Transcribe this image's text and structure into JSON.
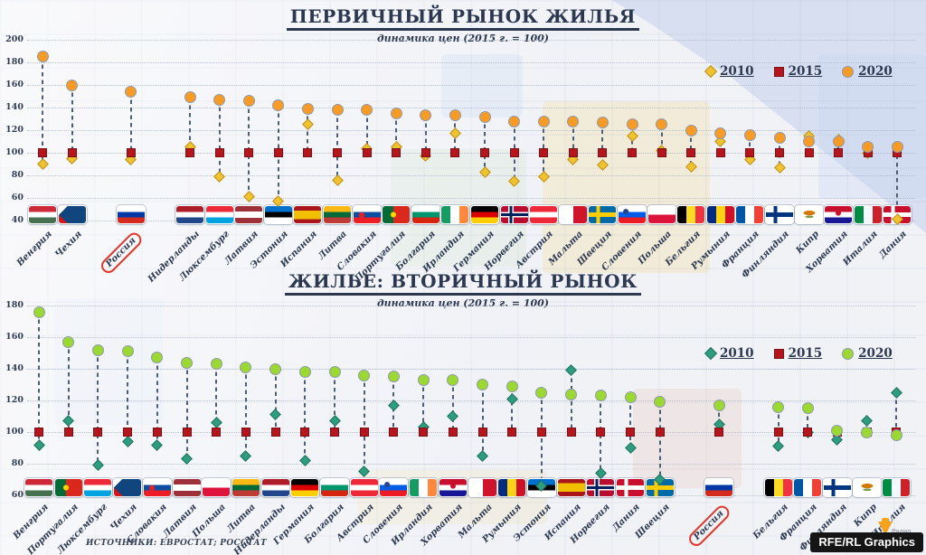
{
  "source_label": "ИСТОЧНИКИ: ЕВРОСТАТ; РОССТАТ",
  "branding": {
    "radio_label": "Радио",
    "credit": "RFE/RL Graphics"
  },
  "chart_data": [
    {
      "type": "scatter",
      "title": "ПЕРВИЧНЫЙ РЫНОК ЖИЛЬЯ",
      "subtitle": "динамика цен (2015 г. = 100)",
      "grid": true,
      "legend_position": "top-right",
      "ylim": [
        40,
        200
      ],
      "yticks": [
        200,
        180,
        160,
        140,
        120,
        100,
        80,
        60,
        40
      ],
      "highlight_country": "Россия",
      "categories": [
        "Венгрия",
        "Чехия",
        "Россия",
        "Нидерланды",
        "Люксембург",
        "Латвия",
        "Эстония",
        "Испания",
        "Литва",
        "Словакия",
        "Португалия",
        "Болгария",
        "Ирландия",
        "Германия",
        "Норвегия",
        "Австрия",
        "Мальта",
        "Швеция",
        "Словения",
        "Польша",
        "Бельгия",
        "Румыния",
        "Франция",
        "Финляндия",
        "Кипр",
        "Хорватия",
        "Италия",
        "Дания"
      ],
      "flags": [
        "hu",
        "cz",
        "ru",
        "nl",
        "lu",
        "lv",
        "ee",
        "es",
        "lt",
        "sk",
        "pt",
        "bg",
        "ie",
        "de",
        "no",
        "at",
        "mt",
        "se",
        "si",
        "pl",
        "be",
        "ro",
        "fr",
        "fi",
        "cy",
        "hr",
        "it",
        "dk"
      ],
      "series": [
        {
          "name": "2010",
          "marker": "diamond",
          "color": "#EFC32D",
          "edge": "#BE8E1E",
          "values": [
            90,
            95,
            94,
            105,
            79,
            61,
            57,
            125,
            76,
            104,
            105,
            97,
            117,
            83,
            75,
            79,
            94,
            89,
            115,
            102,
            88,
            110,
            94,
            87,
            115,
            112,
            100,
            41
          ]
        },
        {
          "name": "2015",
          "marker": "square",
          "color": "#B5161D",
          "edge": "#7A1014",
          "values": [
            100,
            100,
            100,
            100,
            100,
            100,
            100,
            100,
            100,
            100,
            100,
            100,
            100,
            100,
            100,
            100,
            100,
            100,
            100,
            100,
            100,
            100,
            100,
            100,
            100,
            100,
            100,
            100
          ]
        },
        {
          "name": "2020",
          "marker": "circle",
          "color": "#F79B27",
          "edge": "#8E99AD",
          "values": [
            185,
            160,
            154,
            149,
            147,
            146,
            142,
            139,
            138,
            138,
            135,
            133,
            133,
            132,
            128,
            128,
            128,
            127,
            125,
            125,
            120,
            117,
            116,
            113,
            110,
            110,
            105,
            105
          ]
        }
      ]
    },
    {
      "type": "scatter",
      "title": "ЖИЛЬЕ: ВТОРИЧНЫЙ РЫНОК",
      "subtitle": "динамика цен (2015 г. = 100)",
      "grid": true,
      "legend_position": "top-right",
      "ylim": [
        60,
        180
      ],
      "yticks": [
        180,
        160,
        140,
        120,
        100,
        80,
        60
      ],
      "highlight_country": "Россия",
      "categories": [
        "Венгрия",
        "Португалия",
        "Люксембург",
        "Чехия",
        "Словакия",
        "Латвия",
        "Польша",
        "Литва",
        "Нидерланды",
        "Германия",
        "Болгария",
        "Австрия",
        "Словения",
        "Ирландия",
        "Хорватия",
        "Мальта",
        "Румыния",
        "Эстония",
        "Испания",
        "Норвегия",
        "Дания",
        "Швеция",
        "Россия",
        "Бельгия",
        "Франция",
        "Финляндия",
        "Кипр",
        "Италия"
      ],
      "flags": [
        "hu",
        "pt",
        "lu",
        "cz",
        "sk",
        "lv",
        "pl",
        "lt",
        "nl",
        "de",
        "bg",
        "at",
        "si",
        "ie",
        "hr",
        "mt",
        "ro",
        "ee",
        "es",
        "no",
        "dk",
        "se",
        "ru",
        "be",
        "fr",
        "fi",
        "cy",
        "it"
      ],
      "series": [
        {
          "name": "2010",
          "marker": "diamond",
          "color": "#2E9C7F",
          "edge": "#20715C",
          "values": [
            92,
            107,
            79,
            94,
            92,
            83,
            106,
            85,
            111,
            82,
            107,
            75,
            117,
            103,
            110,
            85,
            121,
            66,
            139,
            74,
            90,
            70,
            105,
            91,
            100,
            95,
            107,
            125
          ]
        },
        {
          "name": "2015",
          "marker": "square",
          "color": "#B5161D",
          "edge": "#7A1014",
          "values": [
            100,
            100,
            100,
            100,
            100,
            100,
            100,
            100,
            100,
            100,
            100,
            100,
            100,
            100,
            100,
            100,
            100,
            100,
            100,
            100,
            100,
            100,
            100,
            100,
            100,
            100,
            100,
            100
          ]
        },
        {
          "name": "2020",
          "marker": "circle",
          "color": "#9BD832",
          "edge": "#8E99AD",
          "values": [
            176,
            157,
            152,
            151,
            147,
            144,
            143,
            141,
            140,
            138,
            138,
            136,
            135,
            133,
            133,
            130,
            129,
            125,
            124,
            123,
            122,
            119,
            117,
            116,
            115,
            101,
            100,
            98
          ]
        }
      ]
    }
  ],
  "flag_specs": {
    "hu": {
      "t": "h",
      "c": [
        "#CE2939",
        "#FFFFFF",
        "#477050"
      ]
    },
    "cz": {
      "t": "cz",
      "c": [
        "#FFFFFF",
        "#D7141A",
        "#11457E"
      ]
    },
    "ru": {
      "t": "h",
      "c": [
        "#FFFFFF",
        "#0039A6",
        "#D52B1E"
      ]
    },
    "nl": {
      "t": "h",
      "c": [
        "#AE1C28",
        "#FFFFFF",
        "#21468B"
      ]
    },
    "lu": {
      "t": "h",
      "c": [
        "#ED2939",
        "#FFFFFF",
        "#00A3E0"
      ]
    },
    "lv": {
      "t": "h",
      "c": [
        "#9E3039",
        "#FFFFFF",
        "#9E3039"
      ],
      "s": [
        32,
        68
      ]
    },
    "ee": {
      "t": "h",
      "c": [
        "#0072CE",
        "#000000",
        "#FFFFFF"
      ]
    },
    "es": {
      "t": "h",
      "c": [
        "#AA151B",
        "#F1BF00",
        "#AA151B"
      ],
      "s": [
        25,
        75
      ]
    },
    "lt": {
      "t": "h",
      "c": [
        "#FDB913",
        "#046A38",
        "#BE3A34"
      ]
    },
    "sk": {
      "t": "h",
      "c": [
        "#FFFFFF",
        "#0B4EA2",
        "#EE1C25"
      ],
      "em": [
        "30% 52%",
        "#EE1C25"
      ]
    },
    "pt": {
      "t": "v",
      "c": [
        "#046A38",
        "#DA291C"
      ],
      "s": [
        40
      ],
      "em": [
        "40% 50%",
        "#FFD700"
      ]
    },
    "bg": {
      "t": "h",
      "c": [
        "#FFFFFF",
        "#00966E",
        "#D62612"
      ]
    },
    "ie": {
      "t": "v",
      "c": [
        "#169B62",
        "#FFFFFF",
        "#FF883E"
      ]
    },
    "de": {
      "t": "h",
      "c": [
        "#000000",
        "#DD0000",
        "#FFCE00"
      ]
    },
    "no": {
      "t": "nordic2",
      "c": [
        "#BA0C2F",
        "#FFFFFF",
        "#00205B"
      ]
    },
    "at": {
      "t": "h",
      "c": [
        "#ED2939",
        "#FFFFFF",
        "#ED2939"
      ]
    },
    "mt": {
      "t": "v",
      "c": [
        "#FFFFFF",
        "#CF142B"
      ]
    },
    "se": {
      "t": "nordic",
      "c": [
        "#006AA7",
        "#FECC02"
      ]
    },
    "si": {
      "t": "h",
      "c": [
        "#FFFFFF",
        "#005CE6",
        "#ED1C24"
      ],
      "em": [
        "27% 32%",
        "#24458C"
      ]
    },
    "pl": {
      "t": "h",
      "c": [
        "#FFFFFF",
        "#DC143C"
      ]
    },
    "be": {
      "t": "v",
      "c": [
        "#000000",
        "#FDDA24",
        "#EF3340"
      ]
    },
    "ro": {
      "t": "v",
      "c": [
        "#002B7F",
        "#FCD116",
        "#CE1126"
      ]
    },
    "fr": {
      "t": "v",
      "c": [
        "#0055A4",
        "#FFFFFF",
        "#EF4135"
      ]
    },
    "fi": {
      "t": "nordic",
      "c": [
        "#FFFFFF",
        "#003580"
      ]
    },
    "cy": {
      "t": "cy",
      "c": [
        "#FFFFFF",
        "#D57800"
      ]
    },
    "hr": {
      "t": "h",
      "c": [
        "#C8102E",
        "#FFFFFF",
        "#171796"
      ],
      "em": [
        "50% 40%",
        "#C8102E"
      ]
    },
    "it": {
      "t": "v",
      "c": [
        "#008C45",
        "#F4F9FF",
        "#CD212A"
      ]
    },
    "dk": {
      "t": "nordic",
      "c": [
        "#C8102E",
        "#FFFFFF"
      ]
    }
  }
}
